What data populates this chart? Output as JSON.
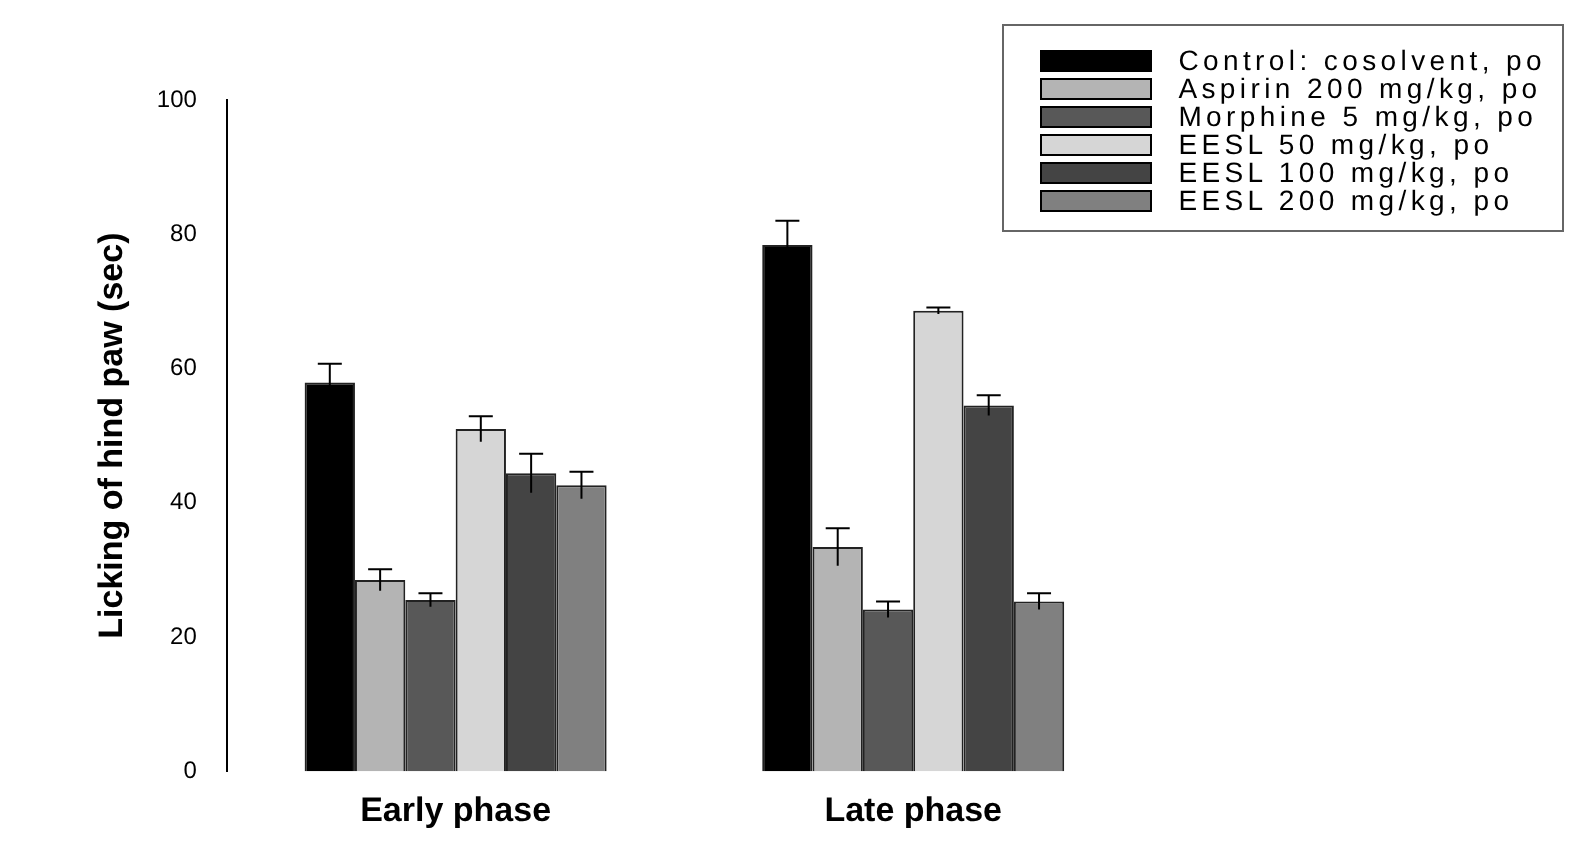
{
  "chart_data": {
    "type": "bar",
    "ylabel": "Licking of hind paw (sec)",
    "categories": [
      "Early phase",
      "Late phase"
    ],
    "series": [
      {
        "name": "Control: cosolvent, po",
        "color": "#000000",
        "values": [
          57.9,
          78.4
        ],
        "errors": [
          2.8,
          3.6
        ]
      },
      {
        "name": "Aspirin 200 mg/kg, po",
        "color": "#b4b4b4",
        "values": [
          28.5,
          33.4
        ],
        "errors": [
          1.6,
          2.8
        ]
      },
      {
        "name": "Morphine 5 mg/kg, po",
        "color": "#585858",
        "values": [
          25.5,
          24.1
        ],
        "errors": [
          1.0,
          1.2
        ]
      },
      {
        "name": "EESL 50 mg/kg, po",
        "color": "#d6d6d6",
        "values": [
          51.0,
          68.6
        ],
        "errors": [
          1.9,
          0.5
        ]
      },
      {
        "name": "EESL 100 mg/kg, po",
        "color": "#444444",
        "values": [
          44.4,
          54.5
        ],
        "errors": [
          2.9,
          1.5
        ]
      },
      {
        "name": "EESL 200 mg/kg, po",
        "color": "#808080",
        "values": [
          42.6,
          25.3
        ],
        "errors": [
          2.0,
          1.2
        ]
      }
    ],
    "ylim": [
      0,
      100
    ],
    "yticks": [
      0,
      20,
      40,
      60,
      80,
      100
    ],
    "grid": false,
    "legend": "top right"
  }
}
